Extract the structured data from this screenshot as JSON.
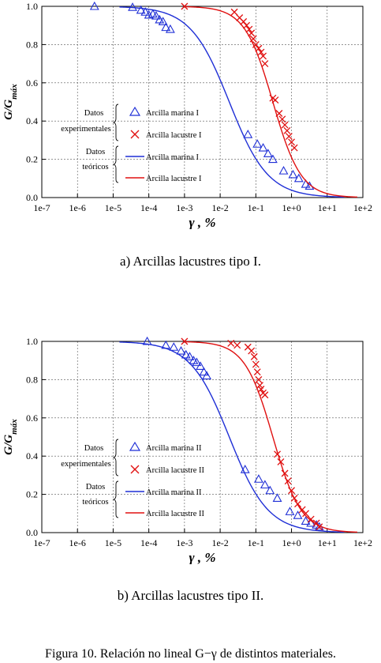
{
  "figure_caption": "Figura 10. Relación no lineal G−γ de distintos materiales.",
  "colors": {
    "marina": "#1f2fd6",
    "lacustre": "#e01010"
  },
  "chart_data": [
    {
      "type": "scatter",
      "caption": "a) Arcillas lacustres tipo I.",
      "ylabel": "G/G",
      "ylabel_sub": "máx",
      "xlabel": "γ , %",
      "xscale": "log",
      "xlim": [
        1e-07,
        100
      ],
      "ylim": [
        0,
        1
      ],
      "xtick_labels": [
        "1e-7",
        "1e-6",
        "1e-5",
        "1e-4",
        "1e-3",
        "1e-2",
        "1e-1",
        "1e+0",
        "1e+1",
        "1e+2"
      ],
      "ytick_labels": [
        "0.0",
        "0.2",
        "0.4",
        "0.6",
        "0.8",
        "1.0"
      ],
      "yticks": [
        0,
        0.2,
        0.4,
        0.6,
        0.8,
        1.0
      ],
      "legend": {
        "group1": [
          "Datos",
          "experimentales"
        ],
        "group2": [
          "Datos",
          "teóricos"
        ],
        "entries": [
          "Arcilla marina I",
          "Arcilla lacustre I",
          "Arcilla marina I",
          "Arcilla lacustre I"
        ]
      },
      "series": [
        {
          "name": "Arcilla marina I",
          "kind": "points",
          "marker": "triangle",
          "color": "marina",
          "x": [
            3e-06,
            3.5e-05,
            6e-05,
            8e-05,
            0.0001,
            0.00013,
            0.00016,
            0.0002,
            0.00025,
            0.0003,
            0.0004,
            0.06,
            0.11,
            0.16,
            0.22,
            0.3,
            0.6,
            1.1,
            1.6,
            2.5,
            3.2
          ],
          "y": [
            1.0,
            0.995,
            0.98,
            0.97,
            0.955,
            0.96,
            0.95,
            0.93,
            0.92,
            0.89,
            0.88,
            0.33,
            0.28,
            0.26,
            0.23,
            0.2,
            0.14,
            0.12,
            0.1,
            0.07,
            0.06
          ]
        },
        {
          "name": "Arcilla lacustre I",
          "kind": "points",
          "marker": "cross",
          "color": "lacustre",
          "x": [
            0.001,
            0.025,
            0.035,
            0.045,
            0.055,
            0.065,
            0.075,
            0.085,
            0.1,
            0.12,
            0.14,
            0.16,
            0.18,
            0.3,
            0.35,
            0.45,
            0.55,
            0.65,
            0.75,
            0.85,
            1.0,
            1.2
          ],
          "y": [
            1.0,
            0.97,
            0.94,
            0.92,
            0.9,
            0.88,
            0.86,
            0.83,
            0.8,
            0.78,
            0.76,
            0.74,
            0.7,
            0.52,
            0.51,
            0.44,
            0.41,
            0.38,
            0.35,
            0.32,
            0.29,
            0.26
          ]
        },
        {
          "name": "Arcilla marina I",
          "kind": "curve",
          "color": "marina",
          "x0": 1.5e-05,
          "x1": 30,
          "gref": 0.018,
          "a": 0.8
        },
        {
          "name": "Arcilla lacustre I",
          "kind": "curve",
          "color": "lacustre",
          "x0": 0.001,
          "x1": 70,
          "gref": 0.3,
          "a": 1.1
        }
      ]
    },
    {
      "type": "scatter",
      "caption": "b) Arcillas lacustres tipo II.",
      "ylabel": "G/G",
      "ylabel_sub": "máx",
      "xlabel": "γ , %",
      "xscale": "log",
      "xlim": [
        1e-07,
        100
      ],
      "ylim": [
        0,
        1
      ],
      "xtick_labels": [
        "1e-7",
        "1e-6",
        "1e-5",
        "1e-4",
        "1e-3",
        "1e-2",
        "1e-1",
        "1e+0",
        "1e+1",
        "1e+2"
      ],
      "ytick_labels": [
        "0.0",
        "0.2",
        "0.4",
        "0.6",
        "0.8",
        "1.0"
      ],
      "yticks": [
        0,
        0.2,
        0.4,
        0.6,
        0.8,
        1.0
      ],
      "legend": {
        "group1": [
          "Datos",
          "experimentales"
        ],
        "group2": [
          "Datos",
          "teóricos"
        ],
        "entries": [
          "Arcilla marina II",
          "Arcilla lacustre II",
          "Arcilla marina II",
          "Arcilla lacustre II"
        ]
      },
      "series": [
        {
          "name": "Arcilla marina II",
          "kind": "points",
          "marker": "triangle",
          "color": "marina",
          "x": [
            9e-05,
            0.0003,
            0.0005,
            0.0008,
            0.0011,
            0.0014,
            0.0018,
            0.0022,
            0.0028,
            0.0035,
            0.0042,
            0.05,
            0.12,
            0.18,
            0.25,
            0.4,
            0.9,
            1.5,
            2.5,
            3.5,
            5,
            6
          ],
          "y": [
            1.0,
            0.98,
            0.97,
            0.95,
            0.93,
            0.92,
            0.9,
            0.89,
            0.87,
            0.84,
            0.82,
            0.33,
            0.28,
            0.25,
            0.22,
            0.18,
            0.11,
            0.09,
            0.06,
            0.05,
            0.04,
            0.03
          ]
        },
        {
          "name": "Arcilla lacustre II",
          "kind": "points",
          "marker": "cross",
          "color": "lacustre",
          "x": [
            0.001,
            0.02,
            0.03,
            0.06,
            0.075,
            0.09,
            0.1,
            0.11,
            0.12,
            0.13,
            0.14,
            0.16,
            0.18,
            0.4,
            0.5,
            0.65,
            0.8,
            1.0,
            1.2,
            1.5,
            2.0,
            2.5,
            3.5,
            5,
            6
          ],
          "y": [
            1.0,
            0.99,
            0.98,
            0.97,
            0.95,
            0.92,
            0.88,
            0.84,
            0.8,
            0.77,
            0.75,
            0.73,
            0.72,
            0.41,
            0.37,
            0.31,
            0.27,
            0.22,
            0.18,
            0.15,
            0.12,
            0.1,
            0.07,
            0.05,
            0.03
          ]
        },
        {
          "name": "Arcilla marina II",
          "kind": "curve",
          "color": "marina",
          "x0": 1.5e-05,
          "x1": 30,
          "gref": 0.018,
          "a": 0.8
        },
        {
          "name": "Arcilla lacustre II",
          "kind": "curve",
          "color": "lacustre",
          "x0": 0.001,
          "x1": 70,
          "gref": 0.3,
          "a": 1.1
        }
      ]
    }
  ]
}
